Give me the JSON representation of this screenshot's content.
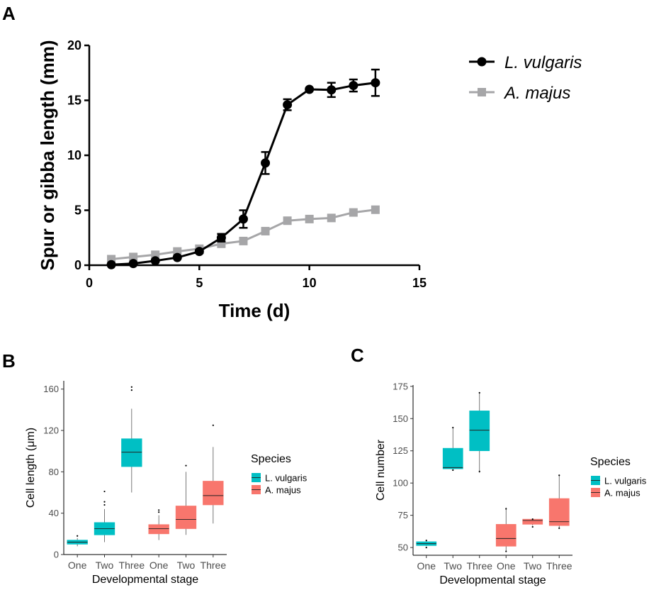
{
  "chart_data": [
    {
      "panel": "A",
      "type": "line",
      "title": "",
      "xlabel": "Time (d)",
      "ylabel": "Spur or gibba length (mm)",
      "xlim": [
        0,
        15
      ],
      "ylim": [
        0,
        20
      ],
      "xticks": [
        0,
        5,
        10,
        15
      ],
      "yticks": [
        0,
        5,
        10,
        15,
        20
      ],
      "legend_position": "top-right",
      "series": [
        {
          "name": "L. vulgaris",
          "color": "#000000",
          "marker": "circle",
          "x": [
            1,
            2,
            3,
            4,
            5,
            6,
            7,
            8,
            9,
            10,
            11,
            12,
            13
          ],
          "y": [
            0.05,
            0.15,
            0.4,
            0.7,
            1.25,
            2.5,
            4.2,
            9.3,
            14.6,
            16.0,
            15.95,
            16.35,
            16.6
          ],
          "err": [
            0,
            0,
            0,
            0,
            0.15,
            0.35,
            0.8,
            1.0,
            0.5,
            0,
            0.65,
            0.55,
            1.2
          ]
        },
        {
          "name": "A. majus",
          "color": "#a6a6a8",
          "marker": "square",
          "x": [
            1,
            2,
            3,
            4,
            5,
            6,
            7,
            8,
            9,
            10,
            11,
            12,
            13
          ],
          "y": [
            0.55,
            0.75,
            0.95,
            1.25,
            1.5,
            1.95,
            2.2,
            3.1,
            4.05,
            4.2,
            4.3,
            4.8,
            5.05
          ]
        }
      ]
    },
    {
      "panel": "B",
      "type": "boxplot",
      "title": "",
      "xlabel": "Developmental stage",
      "ylabel": "Cell length (μm)",
      "ylim": [
        0,
        168
      ],
      "yticks": [
        0,
        40,
        80,
        120,
        160
      ],
      "legend_title": "Species",
      "legend_position": "right",
      "species": [
        {
          "name": "L. vulgaris",
          "color": "#00bfc4"
        },
        {
          "name": "A. majus",
          "color": "#f8766d"
        }
      ],
      "boxes": [
        {
          "category": "One",
          "species": "L. vulgaris",
          "min": 8,
          "q1": 10,
          "median": 12,
          "q3": 14,
          "max": 16,
          "outliers": [
            18
          ]
        },
        {
          "category": "Two",
          "species": "L. vulgaris",
          "min": 12,
          "q1": 19,
          "median": 25,
          "q3": 31,
          "max": 44,
          "outliers": [
            48,
            51,
            61
          ]
        },
        {
          "category": "Three",
          "species": "L. vulgaris",
          "min": 60,
          "q1": 85,
          "median": 99,
          "q3": 112,
          "max": 141,
          "outliers": [
            159,
            162
          ]
        },
        {
          "category": "One",
          "species": "A. majus",
          "min": 14,
          "q1": 20,
          "median": 25,
          "q3": 29,
          "max": 38,
          "outliers": [
            41,
            43
          ]
        },
        {
          "category": "Two",
          "species": "A. majus",
          "min": 19,
          "q1": 25,
          "median": 34,
          "q3": 47,
          "max": 80,
          "outliers": [
            86
          ]
        },
        {
          "category": "Three",
          "species": "A. majus",
          "min": 30,
          "q1": 48,
          "median": 57,
          "q3": 71,
          "max": 104,
          "outliers": [
            125
          ]
        }
      ]
    },
    {
      "panel": "C",
      "type": "boxplot",
      "title": "",
      "xlabel": "Developmental stage",
      "ylabel": "Cell number",
      "ylim": [
        44,
        176
      ],
      "yticks": [
        50,
        75,
        100,
        125,
        150,
        175
      ],
      "legend_title": "Species",
      "legend_position": "right",
      "species": [
        {
          "name": "L. vulgaris",
          "color": "#00bfc4"
        },
        {
          "name": "A. majus",
          "color": "#f8766d"
        }
      ],
      "boxes": [
        {
          "category": "One",
          "species": "L. vulgaris",
          "min": 51,
          "q1": 51.5,
          "median": 53,
          "q3": 54.5,
          "max": 55,
          "outliers": [
            50,
            55.5
          ]
        },
        {
          "category": "Two",
          "species": "L. vulgaris",
          "min": 110,
          "q1": 111,
          "median": 112,
          "q3": 127,
          "max": 143,
          "outliers": [
            110,
            143
          ]
        },
        {
          "category": "Three",
          "species": "L. vulgaris",
          "min": 108,
          "q1": 125,
          "median": 141,
          "q3": 156,
          "max": 170,
          "outliers": [
            109,
            170
          ]
        },
        {
          "category": "One",
          "species": "A. majus",
          "min": 47,
          "q1": 51,
          "median": 57,
          "q3": 68,
          "max": 81,
          "outliers": [
            47,
            80
          ]
        },
        {
          "category": "Two",
          "species": "A. majus",
          "min": 67,
          "q1": 68,
          "median": 71,
          "q3": 72,
          "max": 72,
          "outliers": [
            66,
            72
          ]
        },
        {
          "category": "Three",
          "species": "A. majus",
          "min": 65,
          "q1": 67,
          "median": 70,
          "q3": 88,
          "max": 106,
          "outliers": [
            65,
            106
          ]
        }
      ]
    }
  ]
}
